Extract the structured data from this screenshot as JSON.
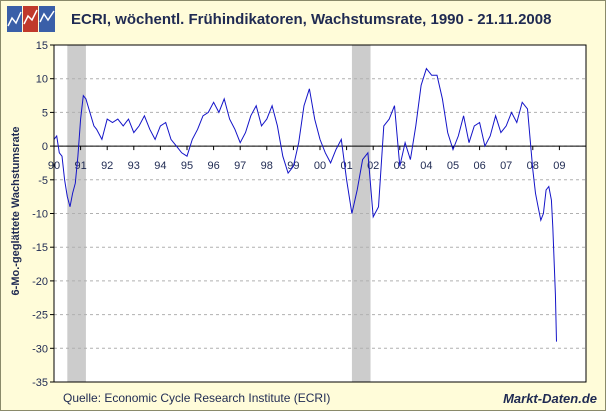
{
  "header": {
    "title": "ECRI, wöchentl. Frühindikatoren, Wachstumsrate, 1990 - 21.11.2008",
    "logo_icon": "chart-logo-icon"
  },
  "footer": {
    "source": "Quelle: Economic Cycle Research Institute (ECRI)",
    "brand": "Markt-Daten.de"
  },
  "colors": {
    "background": "#fffcd9",
    "line": "#1414c8",
    "recession_band": "#cccccc",
    "text": "#1f2a52"
  },
  "chart_data": {
    "type": "line",
    "title": "ECRI, wöchentl. Frühindikatoren, Wachstumsrate, 1990 - 21.11.2008",
    "xlabel": "",
    "ylabel": "6-Mo.-geglättete Wachstumsrate",
    "xlim": [
      1990.0,
      2010.0
    ],
    "ylim": [
      -35,
      15
    ],
    "yticks": [
      15,
      10,
      5,
      0,
      -5,
      -10,
      -15,
      -20,
      -25,
      -30,
      -35
    ],
    "xtick_labels": [
      "90",
      "91",
      "92",
      "93",
      "94",
      "95",
      "96",
      "97",
      "98",
      "99",
      "00",
      "01",
      "02",
      "03",
      "04",
      "05",
      "06",
      "07",
      "08",
      "09"
    ],
    "grid": "horizontal dashed",
    "shaded_periods": [
      {
        "start": 1990.5,
        "end": 1991.2
      },
      {
        "start": 2001.2,
        "end": 2001.9
      }
    ],
    "series": [
      {
        "x": [
          1990.0,
          1990.1,
          1990.2,
          1990.3,
          1990.4,
          1990.5,
          1990.6,
          1990.7,
          1990.8,
          1990.9,
          1991.0,
          1991.1,
          1991.2,
          1991.35,
          1991.5,
          1991.6,
          1991.8,
          1992.0,
          1992.2,
          1992.4,
          1992.6,
          1992.8,
          1993.0,
          1993.2,
          1993.4,
          1993.6,
          1993.8,
          1994.0,
          1994.2,
          1994.4,
          1994.6,
          1994.8,
          1995.0,
          1995.2,
          1995.4,
          1995.6,
          1995.8,
          1996.0,
          1996.2,
          1996.4,
          1996.6,
          1996.8,
          1997.0,
          1997.2,
          1997.4,
          1997.6,
          1997.8,
          1998.0,
          1998.2,
          1998.4,
          1998.6,
          1998.8,
          1999.0,
          1999.2,
          1999.4,
          1999.6,
          1999.8,
          2000.0,
          2000.2,
          2000.4,
          2000.6,
          2000.8,
          2001.0,
          2001.2,
          2001.4,
          2001.6,
          2001.8,
          2002.0,
          2002.2,
          2002.4,
          2002.6,
          2002.8,
          2003.0,
          2003.2,
          2003.4,
          2003.6,
          2003.8,
          2004.0,
          2004.2,
          2004.4,
          2004.6,
          2004.8,
          2005.0,
          2005.2,
          2005.4,
          2005.6,
          2005.8,
          2006.0,
          2006.2,
          2006.4,
          2006.6,
          2006.8,
          2007.0,
          2007.2,
          2007.4,
          2007.6,
          2007.8,
          2008.0,
          2008.1,
          2008.2,
          2008.3,
          2008.4,
          2008.5,
          2008.6,
          2008.7,
          2008.75,
          2008.8,
          2008.85,
          2008.89
        ],
        "y": [
          1.0,
          1.5,
          -1.0,
          -1.5,
          -5.0,
          -7.5,
          -9.0,
          -7.0,
          -5.5,
          -1.5,
          4.0,
          7.5,
          7.0,
          5.0,
          3.0,
          2.5,
          1.0,
          4.0,
          3.5,
          4.0,
          3.0,
          4.0,
          2.0,
          3.0,
          4.5,
          2.5,
          1.0,
          3.0,
          3.5,
          1.0,
          0.0,
          -1.0,
          -1.5,
          1.0,
          2.5,
          4.5,
          5.0,
          6.5,
          5.0,
          7.0,
          4.0,
          2.5,
          0.5,
          2.0,
          4.5,
          6.0,
          3.0,
          4.0,
          6.0,
          3.0,
          -1.5,
          -4.0,
          -3.0,
          0.5,
          6.0,
          8.5,
          4.0,
          1.0,
          -1.0,
          -2.5,
          -0.5,
          1.0,
          -5.0,
          -10.0,
          -6.5,
          -2.0,
          -1.0,
          -10.5,
          -9.0,
          3.0,
          4.0,
          6.0,
          -3.0,
          0.5,
          -2.0,
          3.0,
          9.0,
          11.5,
          10.5,
          10.5,
          7.0,
          2.0,
          -0.5,
          1.5,
          4.5,
          0.5,
          3.0,
          3.5,
          0.0,
          1.5,
          4.5,
          2.0,
          3.0,
          5.0,
          3.5,
          6.5,
          5.5,
          -3.5,
          -7.0,
          -9.0,
          -11.0,
          -10.0,
          -6.5,
          -6.0,
          -8.0,
          -12.0,
          -17.0,
          -22.0,
          -29.0
        ]
      }
    ]
  }
}
